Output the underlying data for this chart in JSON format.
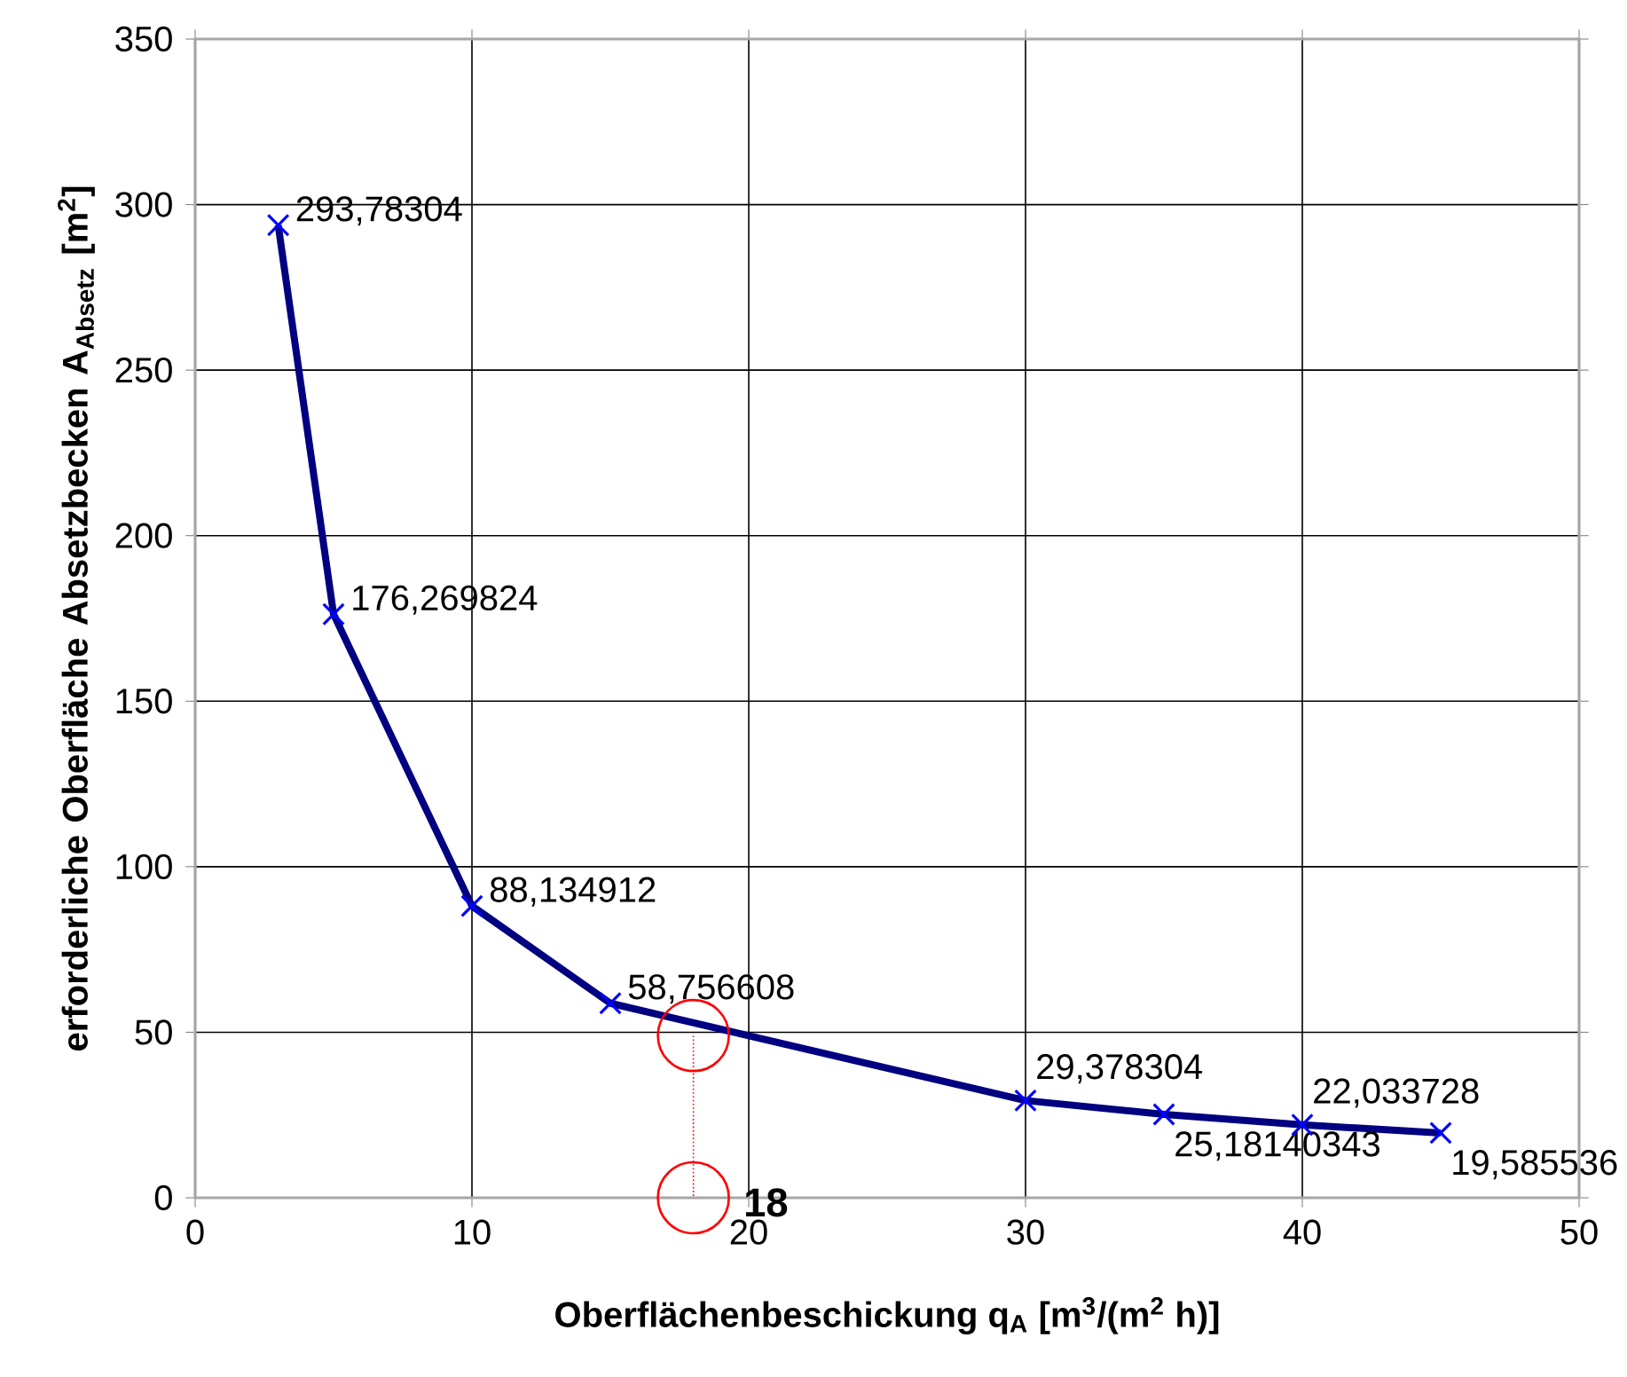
{
  "chart_data": {
    "type": "line",
    "xlabel": "Oberflächenbeschickung q$_{A}$ [m$^{3}$/(m$^{2}$ h)]",
    "ylabel": "erforderliche Oberfläche Absetzbecken A$_{Absetz}$ [m$^{2}$]",
    "xlim": [
      0,
      50
    ],
    "xticks": [
      0,
      10,
      20,
      30,
      40,
      50
    ],
    "ylim": [
      0,
      350
    ],
    "yticks": [
      0,
      50,
      100,
      150,
      200,
      250,
      300,
      350
    ],
    "grid": true,
    "series": [
      {
        "x": [
          3,
          5,
          10,
          15,
          30,
          35,
          40,
          45
        ],
        "values": [
          293.78304,
          176.269824,
          88.134912,
          58.756608,
          29.378304,
          25.18140343,
          22.033728,
          19.585536
        ],
        "color": "#000080",
        "marker": "cross",
        "line_style": "solid",
        "value_labels": [
          "293,78304",
          "176,269824",
          "88,134912",
          "58,756608",
          "29,378304",
          "25,18140343",
          "22,033728",
          "19,585536"
        ]
      },
      {
        "x": [
          18,
          18
        ],
        "values": [
          49,
          0
        ],
        "color": "#ff0000",
        "marker": "circle",
        "line_style": "dotted"
      }
    ],
    "annotations": [
      {
        "text": "18",
        "x": 18,
        "y": 0
      }
    ]
  }
}
